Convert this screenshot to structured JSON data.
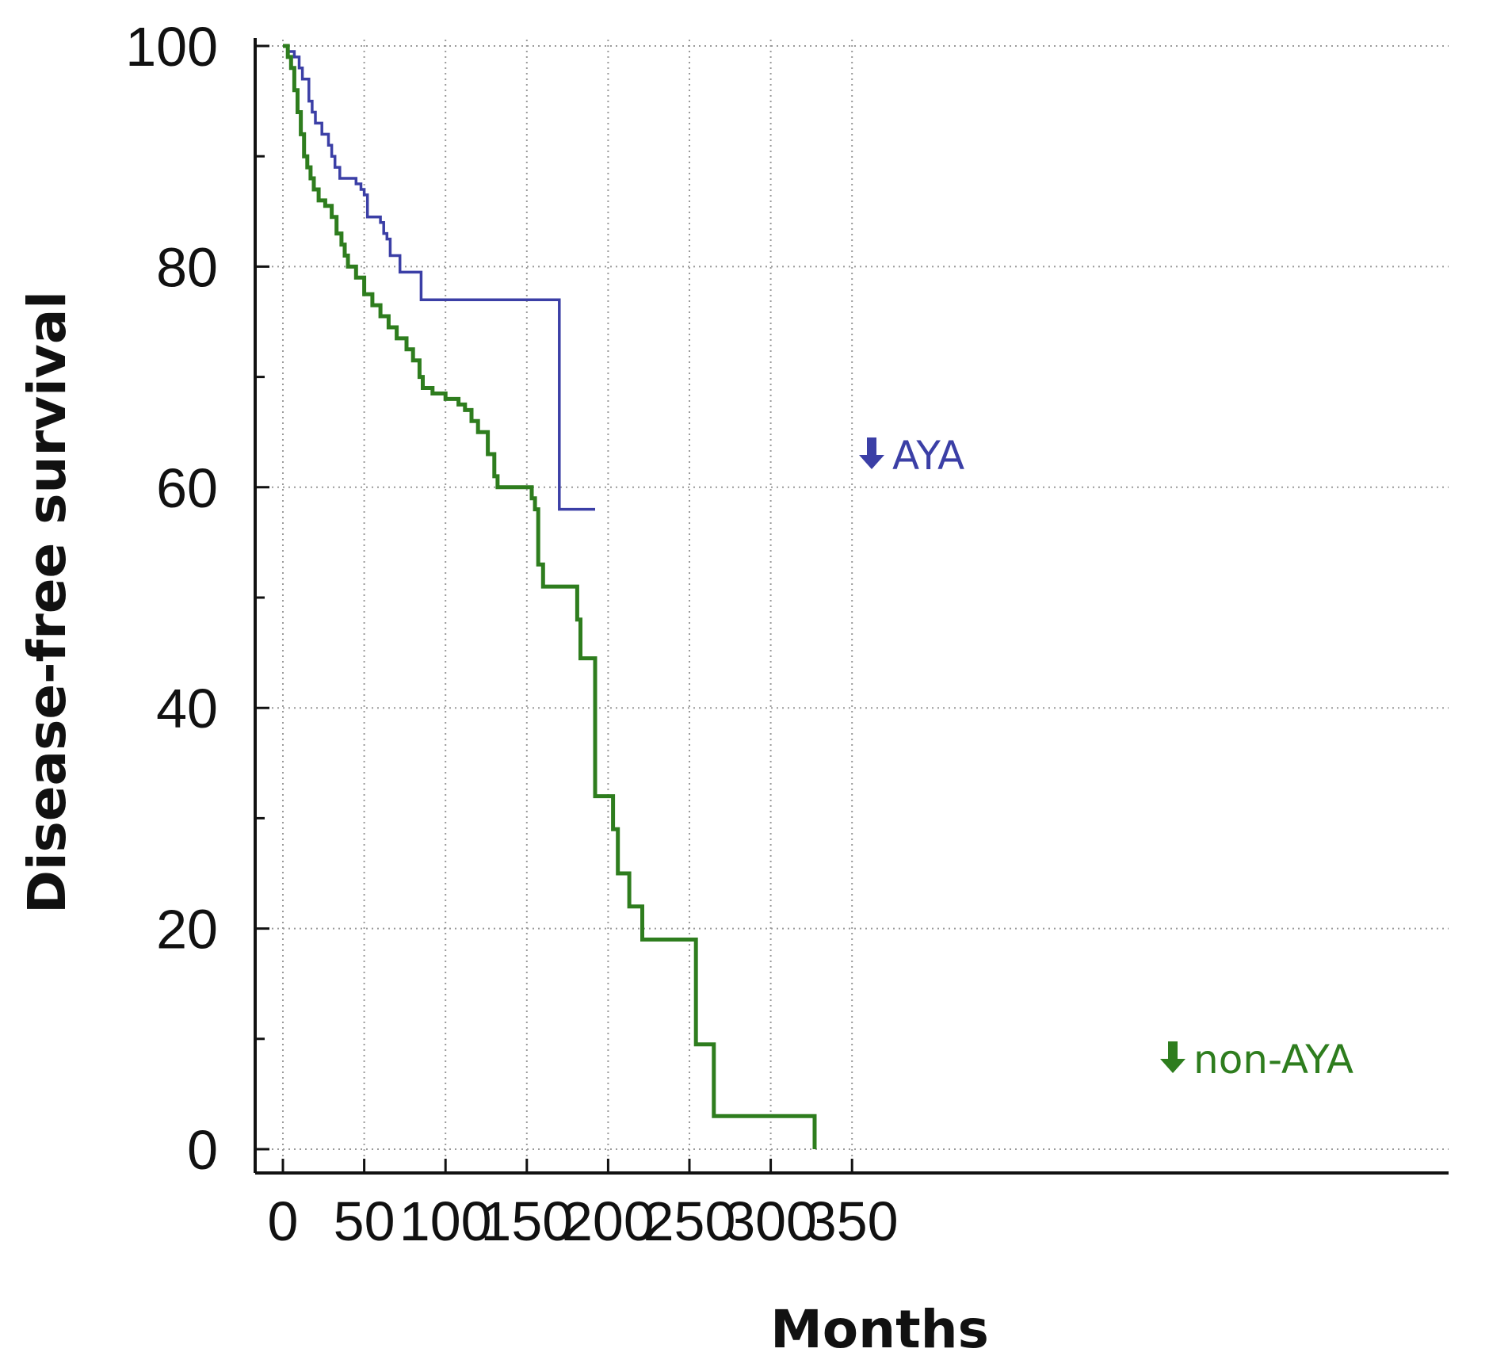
{
  "chart_data": {
    "type": "line",
    "step": true,
    "xlabel": "Months",
    "ylabel": "Disease-free survival",
    "xlim": [
      -8,
      360
    ],
    "ylim": [
      -3,
      101
    ],
    "xticks": [
      0,
      50,
      100,
      150,
      200,
      250,
      300,
      350
    ],
    "yticks": [
      0,
      20,
      40,
      60,
      80,
      100
    ],
    "y_minor_ticks": [
      10,
      30,
      50,
      70,
      90
    ],
    "grid": true,
    "series": [
      {
        "name": "AYA",
        "color": "#3b3fa6",
        "points": [
          [
            0,
            100
          ],
          [
            3,
            99.5
          ],
          [
            7,
            99
          ],
          [
            10,
            98
          ],
          [
            12,
            97
          ],
          [
            14,
            97
          ],
          [
            16,
            95
          ],
          [
            18,
            94
          ],
          [
            20,
            93
          ],
          [
            24,
            92
          ],
          [
            28,
            91
          ],
          [
            30,
            90
          ],
          [
            32,
            89
          ],
          [
            35,
            88
          ],
          [
            40,
            88
          ],
          [
            45,
            87.5
          ],
          [
            48,
            87
          ],
          [
            50,
            86.5
          ],
          [
            52,
            84.5
          ],
          [
            58,
            84.5
          ],
          [
            60,
            84
          ],
          [
            62,
            83
          ],
          [
            64,
            82.5
          ],
          [
            66,
            81
          ],
          [
            70,
            81
          ],
          [
            72,
            79.5
          ],
          [
            85,
            79.5
          ],
          [
            85,
            77
          ],
          [
            170,
            77
          ],
          [
            170,
            58
          ],
          [
            192,
            58
          ]
        ]
      },
      {
        "name": "non-AYA",
        "color": "#2e7d1e",
        "points": [
          [
            0,
            100
          ],
          [
            3,
            99
          ],
          [
            5,
            98
          ],
          [
            7,
            96
          ],
          [
            9,
            94
          ],
          [
            11,
            92
          ],
          [
            13,
            90
          ],
          [
            15,
            89
          ],
          [
            17,
            88
          ],
          [
            19,
            87
          ],
          [
            22,
            86
          ],
          [
            26,
            85.5
          ],
          [
            30,
            84.5
          ],
          [
            33,
            83
          ],
          [
            36,
            82
          ],
          [
            38,
            81
          ],
          [
            40,
            80
          ],
          [
            45,
            79
          ],
          [
            50,
            77.5
          ],
          [
            55,
            76.5
          ],
          [
            60,
            75.5
          ],
          [
            65,
            74.5
          ],
          [
            70,
            73.5
          ],
          [
            76,
            72.5
          ],
          [
            80,
            71.5
          ],
          [
            84,
            70
          ],
          [
            86,
            69
          ],
          [
            92,
            68.5
          ],
          [
            100,
            68
          ],
          [
            108,
            67.5
          ],
          [
            112,
            67
          ],
          [
            116,
            66
          ],
          [
            120,
            65
          ],
          [
            126,
            63
          ],
          [
            130,
            61
          ],
          [
            132,
            60
          ],
          [
            150,
            60
          ],
          [
            153,
            59
          ],
          [
            155,
            58
          ],
          [
            157,
            53
          ],
          [
            160,
            51
          ],
          [
            180,
            51
          ],
          [
            181,
            48
          ],
          [
            183,
            44.5
          ],
          [
            192,
            44.5
          ],
          [
            192,
            32
          ],
          [
            202,
            32
          ],
          [
            203,
            29
          ],
          [
            206,
            25
          ],
          [
            212,
            25
          ],
          [
            213,
            22
          ],
          [
            220,
            22
          ],
          [
            221,
            19
          ],
          [
            254,
            19
          ],
          [
            254,
            9.5
          ],
          [
            265,
            9.5
          ],
          [
            265,
            3
          ],
          [
            327,
            3
          ],
          [
            327,
            0
          ]
        ]
      }
    ]
  }
}
